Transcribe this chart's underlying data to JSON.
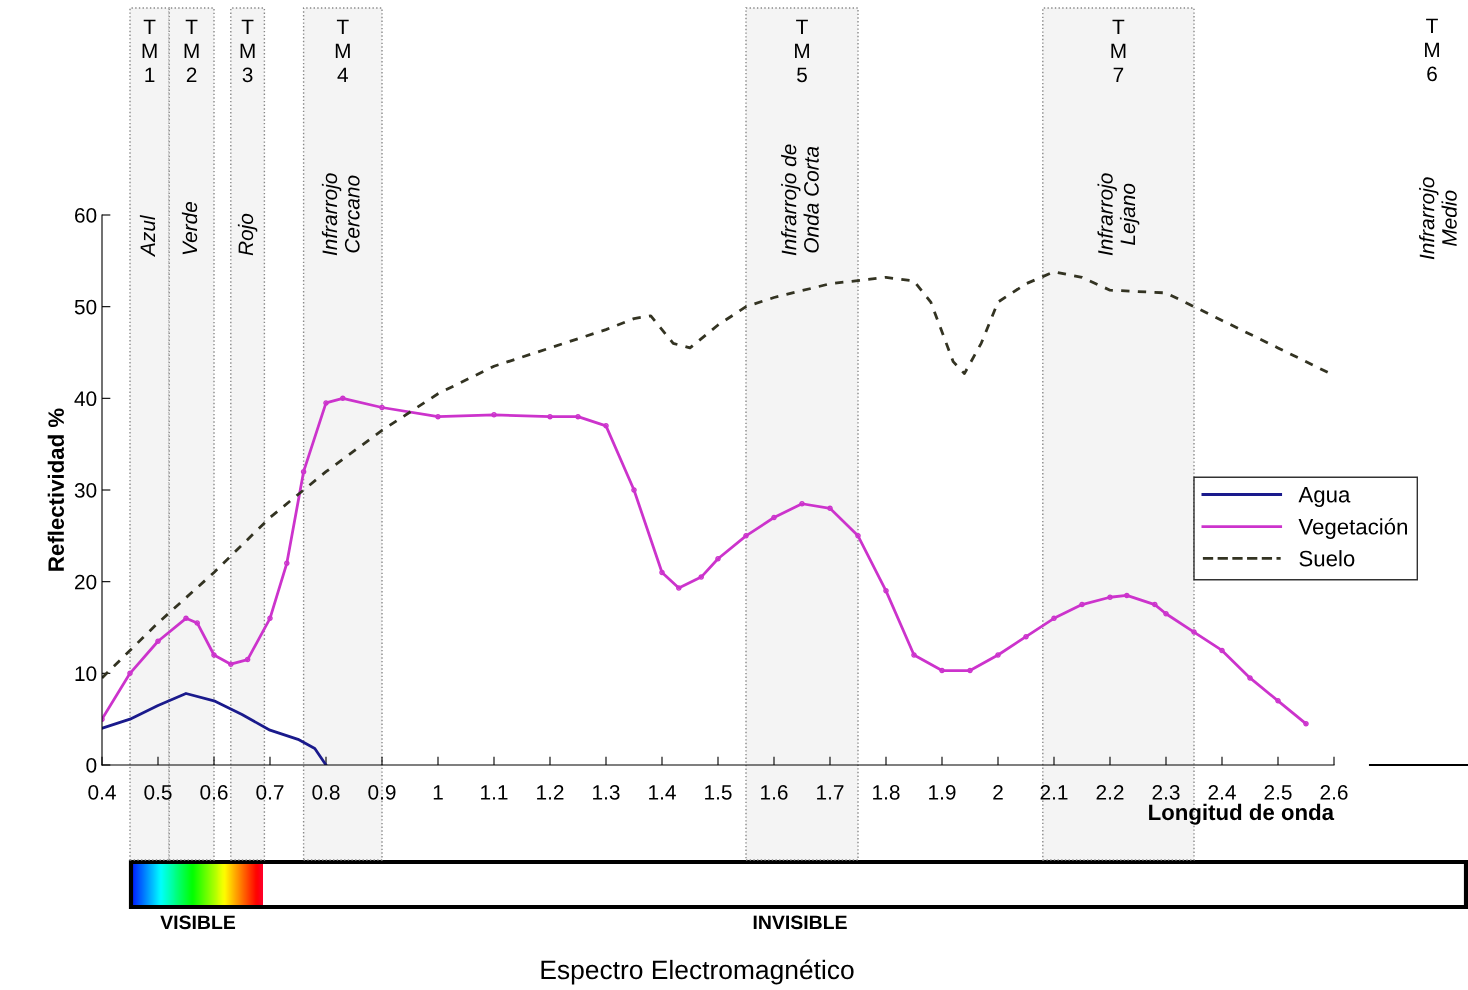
{
  "chart_data": {
    "type": "line",
    "ylabel": "Reflectividad %",
    "xlabel": "Longitud de onda",
    "xlim": [
      0.4,
      2.6
    ],
    "ylim": [
      0,
      60
    ],
    "xticks": [
      0.4,
      0.5,
      0.6,
      0.7,
      0.8,
      0.9,
      1,
      1.1,
      1.2,
      1.3,
      1.4,
      1.5,
      1.6,
      1.7,
      1.8,
      1.9,
      2,
      2.1,
      2.2,
      2.3,
      2.4,
      2.5,
      2.6
    ],
    "yticks": [
      0,
      10,
      20,
      30,
      40,
      50,
      60
    ],
    "grid": false,
    "legend": "right",
    "series": [
      {
        "name": "Agua",
        "color": "#1a1a8c",
        "line_style": "solid",
        "marker": "none",
        "x": [
          0.4,
          0.45,
          0.5,
          0.55,
          0.6,
          0.65,
          0.7,
          0.75,
          0.78,
          0.8
        ],
        "values": [
          4,
          5,
          6.5,
          7.8,
          7,
          5.5,
          3.8,
          2.8,
          1.8,
          0
        ]
      },
      {
        "name": "Vegetación",
        "color": "#cc33cc",
        "line_style": "solid",
        "marker": "circle",
        "x": [
          0.4,
          0.45,
          0.5,
          0.55,
          0.57,
          0.6,
          0.63,
          0.66,
          0.7,
          0.73,
          0.76,
          0.8,
          0.83,
          0.9,
          1.0,
          1.1,
          1.2,
          1.25,
          1.3,
          1.35,
          1.4,
          1.43,
          1.47,
          1.5,
          1.55,
          1.6,
          1.65,
          1.7,
          1.75,
          1.8,
          1.85,
          1.9,
          1.95,
          2.0,
          2.05,
          2.1,
          2.15,
          2.2,
          2.23,
          2.28,
          2.3,
          2.35,
          2.4,
          2.45,
          2.5,
          2.55
        ],
        "values": [
          5,
          10,
          13.5,
          16,
          15.5,
          12,
          11,
          11.5,
          16,
          22,
          32,
          39.5,
          40,
          39,
          38,
          38.2,
          38,
          38,
          37,
          30,
          21,
          19.3,
          20.5,
          22.5,
          25,
          27,
          28.5,
          28,
          25,
          19,
          12,
          10.3,
          10.3,
          12,
          14,
          16,
          17.5,
          18.3,
          18.5,
          17.5,
          16.5,
          14.5,
          12.5,
          9.5,
          7,
          4.5
        ]
      },
      {
        "name": "Suelo",
        "color": "#333322",
        "line_style": "dashed",
        "marker": "none",
        "x": [
          0.4,
          0.5,
          0.6,
          0.7,
          0.8,
          0.9,
          1.0,
          1.1,
          1.2,
          1.3,
          1.35,
          1.38,
          1.42,
          1.45,
          1.5,
          1.55,
          1.6,
          1.7,
          1.8,
          1.85,
          1.88,
          1.92,
          1.94,
          1.97,
          2.0,
          2.05,
          2.1,
          2.15,
          2.2,
          2.3,
          2.35,
          2.4,
          2.5,
          2.6
        ],
        "values": [
          9.5,
          15.5,
          21,
          27,
          32,
          36.5,
          40.5,
          43.5,
          45.5,
          47.5,
          48.7,
          49,
          46,
          45.5,
          48,
          50,
          51,
          52.5,
          53.2,
          52.8,
          50.5,
          44,
          42.7,
          46,
          50.5,
          52.5,
          53.8,
          53.2,
          51.8,
          51.5,
          50,
          48.5,
          45.5,
          42.5
        ]
      }
    ],
    "bands": [
      {
        "axis": "x",
        "from": 0.45,
        "to": 0.52,
        "label": "TM1",
        "color": "#f4f4f4"
      },
      {
        "axis": "x",
        "from": 0.52,
        "to": 0.6,
        "label": "TM2",
        "color": "#f4f4f4"
      },
      {
        "axis": "x",
        "from": 0.63,
        "to": 0.69,
        "label": "TM3",
        "color": "#f4f4f4"
      },
      {
        "axis": "x",
        "from": 0.76,
        "to": 0.9,
        "label": "TM4",
        "color": "#f4f4f4"
      },
      {
        "axis": "x",
        "from": 1.55,
        "to": 1.75,
        "label": "TM5",
        "color": "#f4f4f4"
      },
      {
        "axis": "x",
        "from": 2.08,
        "to": 2.35,
        "label": "TM7",
        "color": "#f4f4f4"
      }
    ],
    "annotations": [
      "Azul",
      "Verde",
      "Rojo",
      "Infrarrojo\nCercano",
      "Infrarrojo de\nOnda Corta",
      "Infrarrojo\nLejano",
      "TM6",
      "Infrarrojo\nMedio",
      "VISIBLE",
      "INVISIBLE",
      "Espectro Electromagnético"
    ]
  }
}
